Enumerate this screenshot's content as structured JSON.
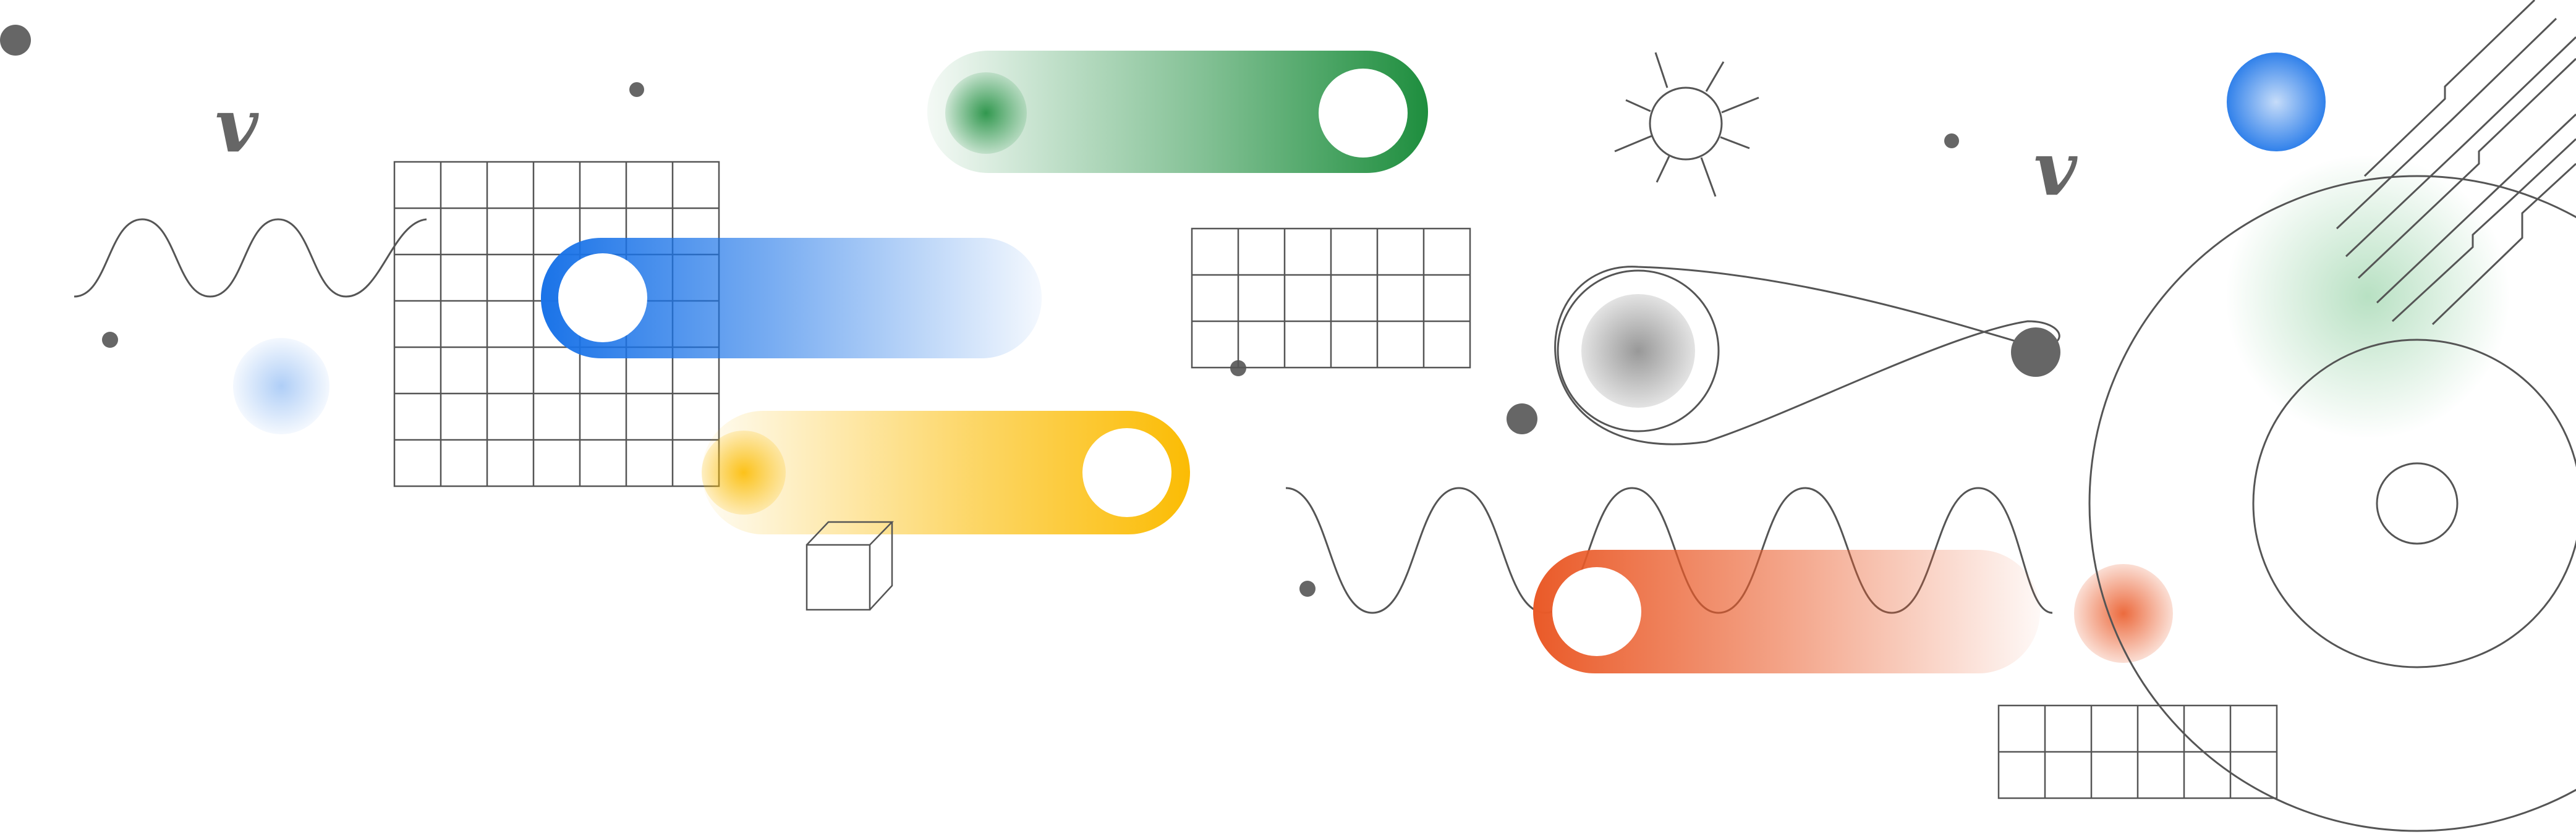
{
  "colors": {
    "green": "#1e8e3e",
    "blue": "#1a73e8",
    "yellow": "#fbbc04",
    "red": "#ea5a28",
    "gray": "#666666",
    "line": "#555555",
    "background": "#ffffff"
  },
  "glyphs": {
    "v_left": "v",
    "v_right": "v"
  },
  "icons": [
    "sun-icon",
    "cube-icon",
    "orbit-loop-icon",
    "sine-wave-icon",
    "grid-icon",
    "concentric-circles-icon"
  ]
}
